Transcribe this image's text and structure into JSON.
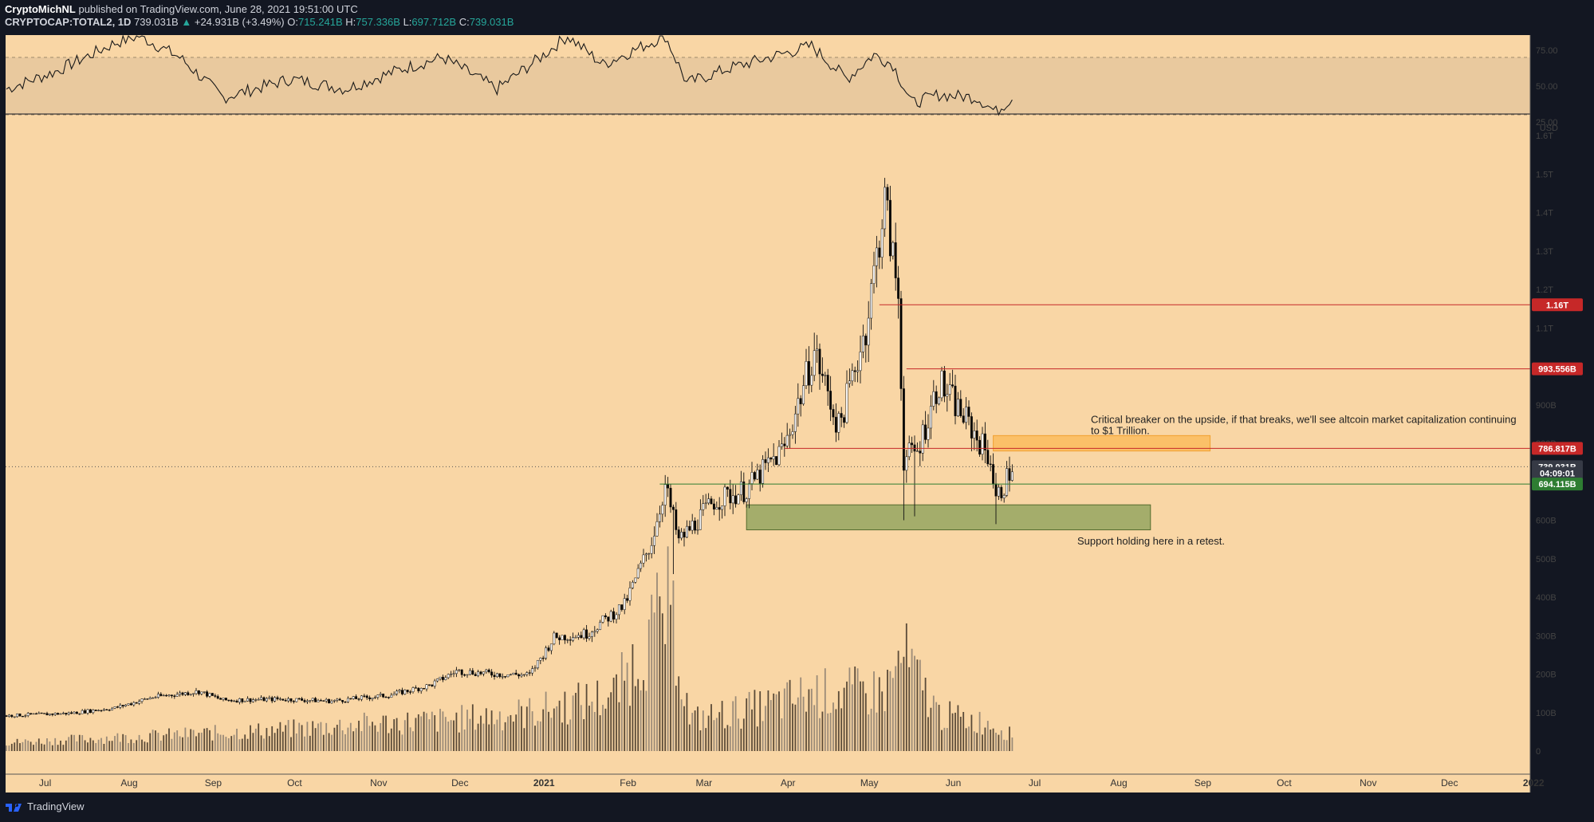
{
  "header": {
    "author": "CryptoMichNL",
    "published": "published on TradingView.com, June 28, 2021 19:51:00 UTC",
    "symbol": "CRYPTOCAP:TOTAL2, 1D",
    "price": "739.031B",
    "change_arrow": "▲",
    "change": "+24.931B (+3.49%)",
    "open_label": "O:",
    "open": "715.241B",
    "high_label": "H:",
    "high": "757.336B",
    "low_label": "L:",
    "low": "697.712B",
    "close_label": "C:",
    "close": "739.031B"
  },
  "footer": {
    "brand": "TradingView",
    "logo_icon": "tradingview-logo-icon"
  },
  "colors": {
    "background": "#f9d6a5",
    "frame": "#131722",
    "candle_up": "#ffffff",
    "candle_down": "#000000",
    "resistance": "#c62828",
    "support": "#2e7d32",
    "support_zone": "#a4ad6b",
    "breaker_zone": "#fbc068"
  },
  "chart_data": {
    "type": "candlestick",
    "title": "CRYPTOCAP:TOTAL2, 1D",
    "unit": "USD",
    "y_ticks": [
      "1.6T",
      "1.5T",
      "1.4T",
      "1.3T",
      "1.2T",
      "1.1T",
      "900B",
      "800B",
      "600B",
      "500B",
      "400B",
      "300B",
      "200B",
      "100B",
      "0"
    ],
    "x_ticks": [
      "Jul",
      "Aug",
      "Sep",
      "Oct",
      "Nov",
      "Dec",
      "2021",
      "Feb",
      "Mar",
      "Apr",
      "May",
      "Jun",
      "Jul",
      "Aug",
      "Sep",
      "Oct",
      "Nov",
      "Dec",
      "2022"
    ],
    "ylim": [
      0,
      1650
    ],
    "y_unit": "B USD",
    "price_labels": [
      {
        "text": "1.16T",
        "value": 1160,
        "kind": "resistance"
      },
      {
        "text": "993.556B",
        "value": 993.556,
        "kind": "resistance"
      },
      {
        "text": "786.817B",
        "value": 786.817,
        "kind": "resistance"
      },
      {
        "text": "739.031B",
        "value": 739.031,
        "kind": "last"
      },
      {
        "text": "04:09:01",
        "value": 722,
        "kind": "countdown"
      },
      {
        "text": "694.115B",
        "value": 694.115,
        "kind": "support"
      }
    ],
    "horizontal_lines": [
      {
        "value": 1160,
        "from": "2021-05-10",
        "color": "#c62828"
      },
      {
        "value": 993.556,
        "from": "2021-05-20",
        "color": "#c62828"
      },
      {
        "value": 786.817,
        "from": "2021-04-05",
        "color": "#c62828"
      },
      {
        "value": 694.115,
        "from": "2021-02-18",
        "color": "#2e7d32"
      }
    ],
    "zones": [
      {
        "name": "support",
        "from": "2021-03-22",
        "to": "2021-08-18",
        "low": 575,
        "high": 640
      },
      {
        "name": "breaker",
        "from": "2021-06-21",
        "to": "2021-09-09",
        "low": 780,
        "high": 820
      }
    ],
    "annotations": [
      {
        "text": "Critical breaker on the upside, if that breaks, we'll see altcoin market capitalization continuing to $1 Trillion.",
        "date": "2021-07-27",
        "value": 890
      },
      {
        "text": "Support holding here in a retest.",
        "date": "2021-07-22",
        "value": 545
      }
    ],
    "close_series": [
      [
        "2020-06-22",
        92
      ],
      [
        "2020-07-15",
        98
      ],
      [
        "2020-08-01",
        112
      ],
      [
        "2020-08-15",
        140
      ],
      [
        "2020-09-01",
        155
      ],
      [
        "2020-09-10",
        132
      ],
      [
        "2020-10-01",
        135
      ],
      [
        "2020-10-20",
        130
      ],
      [
        "2020-11-10",
        145
      ],
      [
        "2020-11-25",
        170
      ],
      [
        "2020-12-05",
        208
      ],
      [
        "2020-12-20",
        200
      ],
      [
        "2021-01-01",
        198
      ],
      [
        "2021-01-10",
        295
      ],
      [
        "2021-01-22",
        305
      ],
      [
        "2021-02-05",
        380
      ],
      [
        "2021-02-15",
        545
      ],
      [
        "2021-02-20",
        690
      ],
      [
        "2021-02-25",
        545
      ],
      [
        "2021-03-10",
        650
      ],
      [
        "2021-03-22",
        680
      ],
      [
        "2021-04-05",
        790
      ],
      [
        "2021-04-16",
        1040
      ],
      [
        "2021-04-25",
        840
      ],
      [
        "2021-05-05",
        1100
      ],
      [
        "2021-05-12",
        1430
      ],
      [
        "2021-05-17",
        1180
      ],
      [
        "2021-05-19",
        760
      ],
      [
        "2021-05-24",
        780
      ],
      [
        "2021-06-01",
        960
      ],
      [
        "2021-06-10",
        870
      ],
      [
        "2021-06-20",
        760
      ],
      [
        "2021-06-22",
        650
      ],
      [
        "2021-06-28",
        739
      ]
    ],
    "volume_axis_max_B": 200,
    "volume_series": [
      [
        "2020-06-22",
        22
      ],
      [
        "2020-08-01",
        35
      ],
      [
        "2020-09-01",
        45
      ],
      [
        "2020-10-01",
        55
      ],
      [
        "2020-11-01",
        70
      ],
      [
        "2020-12-01",
        80
      ],
      [
        "2021-01-01",
        100
      ],
      [
        "2021-02-01",
        145
      ],
      [
        "2021-02-22",
        380
      ],
      [
        "2021-03-01",
        80
      ],
      [
        "2021-04-01",
        120
      ],
      [
        "2021-04-15",
        150
      ],
      [
        "2021-05-12",
        155
      ],
      [
        "2021-05-19",
        245
      ],
      [
        "2021-06-01",
        95
      ],
      [
        "2021-06-21",
        70
      ],
      [
        "2021-06-28",
        40
      ]
    ],
    "rsi": {
      "ticks": [
        "75.00",
        "50.00",
        "25.00"
      ],
      "ylim": [
        25,
        85
      ],
      "band": [
        30,
        70
      ],
      "values": [
        [
          "2020-06-22",
          48
        ],
        [
          "2020-07-10",
          60
        ],
        [
          "2020-08-01",
          80
        ],
        [
          "2020-08-10",
          85
        ],
        [
          "2020-08-25",
          70
        ],
        [
          "2020-09-10",
          42
        ],
        [
          "2020-10-05",
          55
        ],
        [
          "2020-10-25",
          48
        ],
        [
          "2020-11-15",
          62
        ],
        [
          "2020-11-30",
          70
        ],
        [
          "2020-12-20",
          48
        ],
        [
          "2021-01-05",
          70
        ],
        [
          "2021-01-15",
          85
        ],
        [
          "2021-01-28",
          65
        ],
        [
          "2021-02-20",
          85
        ],
        [
          "2021-02-28",
          52
        ],
        [
          "2021-03-15",
          62
        ],
        [
          "2021-04-15",
          78
        ],
        [
          "2021-04-28",
          55
        ],
        [
          "2021-05-08",
          72
        ],
        [
          "2021-05-15",
          65
        ],
        [
          "2021-05-22",
          38
        ],
        [
          "2021-06-01",
          44
        ],
        [
          "2021-06-15",
          42
        ],
        [
          "2021-06-22",
          32
        ],
        [
          "2021-06-28",
          42
        ]
      ]
    }
  }
}
